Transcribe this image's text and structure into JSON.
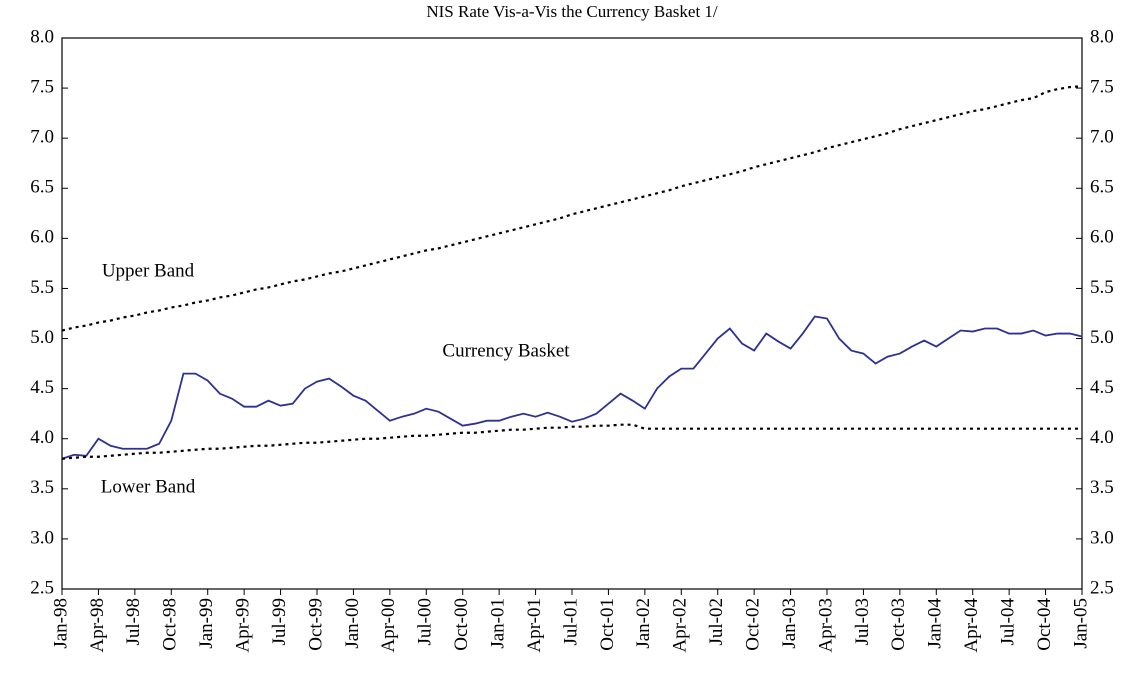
{
  "chart_data": {
    "type": "line",
    "title": "NIS Rate Vis-a-Vis the Currency Basket 1/",
    "categories": [
      "Jan-98",
      null,
      null,
      "Apr-98",
      null,
      null,
      "Jul-98",
      null,
      null,
      "Oct-98",
      null,
      null,
      "Jan-99",
      null,
      null,
      "Apr-99",
      null,
      null,
      "Jul-99",
      null,
      null,
      "Oct-99",
      null,
      null,
      "Jan-00",
      null,
      null,
      "Apr-00",
      null,
      null,
      "Jul-00",
      null,
      null,
      "Oct-00",
      null,
      null,
      "Jan-01",
      null,
      null,
      "Apr-01",
      null,
      null,
      "Jul-01",
      null,
      null,
      "Oct-01",
      null,
      null,
      "Jan-02",
      null,
      null,
      "Apr-02",
      null,
      null,
      "Jul-02",
      null,
      null,
      "Oct-02",
      null,
      null,
      "Jan-03",
      null,
      null,
      "Apr-03",
      null,
      null,
      "Jul-03",
      null,
      null,
      "Oct-03",
      null,
      null,
      "Jan-04",
      null,
      null,
      "Apr-04",
      null,
      null,
      "Jul-04",
      null,
      null,
      "Oct-04",
      null,
      null,
      "Jan-05"
    ],
    "series": [
      {
        "name": "Currency Basket",
        "color": "#2e3192",
        "style": "solid",
        "values": [
          3.8,
          3.84,
          3.83,
          4.0,
          3.93,
          3.9,
          3.9,
          3.9,
          3.95,
          4.18,
          4.65,
          4.65,
          4.58,
          4.45,
          4.4,
          4.32,
          4.32,
          4.38,
          4.33,
          4.35,
          4.5,
          4.57,
          4.6,
          4.52,
          4.43,
          4.38,
          4.28,
          4.18,
          4.22,
          4.25,
          4.3,
          4.27,
          4.2,
          4.13,
          4.15,
          4.18,
          4.18,
          4.22,
          4.25,
          4.22,
          4.26,
          4.22,
          4.17,
          4.2,
          4.25,
          4.35,
          4.45,
          4.38,
          4.3,
          4.5,
          4.62,
          4.7,
          4.7,
          4.85,
          5.0,
          5.1,
          4.95,
          4.88,
          5.05,
          4.97,
          4.9,
          5.05,
          5.22,
          5.2,
          5.0,
          4.88,
          4.85,
          4.75,
          4.82,
          4.85,
          4.92,
          4.98,
          4.92,
          5.0,
          5.08,
          5.07,
          5.1,
          5.1,
          5.05,
          5.05,
          5.08,
          5.03,
          5.05,
          5.05,
          5.02
        ]
      },
      {
        "name": "Upper Band",
        "color": "#000000",
        "style": "dotted",
        "values": [
          5.08,
          5.11,
          5.13,
          5.16,
          5.18,
          5.21,
          5.23,
          5.26,
          5.28,
          5.31,
          5.33,
          5.36,
          5.38,
          5.41,
          5.43,
          5.46,
          5.49,
          5.51,
          5.54,
          5.57,
          5.59,
          5.62,
          5.65,
          5.67,
          5.7,
          5.73,
          5.76,
          5.79,
          5.82,
          5.85,
          5.88,
          5.9,
          5.93,
          5.96,
          5.99,
          6.02,
          6.05,
          6.08,
          6.11,
          6.14,
          6.17,
          6.2,
          6.24,
          6.27,
          6.3,
          6.33,
          6.36,
          6.39,
          6.42,
          6.45,
          6.48,
          6.52,
          6.55,
          6.58,
          6.61,
          6.64,
          6.67,
          6.71,
          6.74,
          6.77,
          6.8,
          6.83,
          6.86,
          6.9,
          6.93,
          6.96,
          6.99,
          7.02,
          7.05,
          7.09,
          7.12,
          7.15,
          7.18,
          7.21,
          7.24,
          7.27,
          7.29,
          7.32,
          7.35,
          7.38,
          7.4,
          7.46,
          7.49,
          7.51,
          7.52
        ]
      },
      {
        "name": "Lower Band",
        "color": "#000000",
        "style": "dotted",
        "values": [
          3.8,
          3.81,
          3.82,
          3.82,
          3.83,
          3.84,
          3.85,
          3.86,
          3.86,
          3.87,
          3.88,
          3.89,
          3.9,
          3.9,
          3.91,
          3.92,
          3.93,
          3.93,
          3.94,
          3.95,
          3.96,
          3.96,
          3.97,
          3.98,
          3.99,
          4.0,
          4.0,
          4.01,
          4.02,
          4.03,
          4.03,
          4.04,
          4.05,
          4.06,
          4.06,
          4.07,
          4.08,
          4.09,
          4.09,
          4.1,
          4.11,
          4.11,
          4.12,
          4.12,
          4.13,
          4.13,
          4.14,
          4.14,
          4.1,
          4.1,
          4.1,
          4.1,
          4.1,
          4.1,
          4.1,
          4.1,
          4.1,
          4.1,
          4.1,
          4.1,
          4.1,
          4.1,
          4.1,
          4.1,
          4.1,
          4.1,
          4.1,
          4.1,
          4.1,
          4.1,
          4.1,
          4.1,
          4.1,
          4.1,
          4.1,
          4.1,
          4.1,
          4.1,
          4.1,
          4.1,
          4.1,
          4.1,
          4.1,
          4.1,
          4.1
        ]
      }
    ],
    "ylim": [
      2.5,
      8.0
    ],
    "yticks": [
      {
        "value": 2.5,
        "label": "2.5"
      },
      {
        "value": 3,
        "label": "3.0"
      },
      {
        "value": 3.5,
        "label": "3.5"
      },
      {
        "value": 4,
        "label": "4.0"
      },
      {
        "value": 4.5,
        "label": "4.5"
      },
      {
        "value": 5,
        "label": "5.0"
      },
      {
        "value": 5.5,
        "label": "5.5"
      },
      {
        "value": 6,
        "label": "6.0"
      },
      {
        "value": 6.5,
        "label": "6.5"
      },
      {
        "value": 7,
        "label": "7.0"
      },
      {
        "value": 7.5,
        "label": "7.5"
      },
      {
        "value": 8,
        "label": "8.0"
      }
    ],
    "y2lim": [
      2.5,
      8.0
    ],
    "y2ticks": [
      {
        "value": 2.5,
        "label": "2.5"
      },
      {
        "value": 3,
        "label": "3.0"
      },
      {
        "value": 3.5,
        "label": "3.5"
      },
      {
        "value": 4,
        "label": "4.0"
      },
      {
        "value": 4.5,
        "label": "4.5"
      },
      {
        "value": 5,
        "label": "5.0"
      },
      {
        "value": 5.5,
        "label": "5.5"
      },
      {
        "value": 6,
        "label": "6.0"
      },
      {
        "value": 6.5,
        "label": "6.5"
      },
      {
        "value": 7,
        "label": "7.0"
      },
      {
        "value": 7.5,
        "label": "7.5"
      },
      {
        "value": 8,
        "label": "8.0"
      }
    ],
    "grid": false
  }
}
